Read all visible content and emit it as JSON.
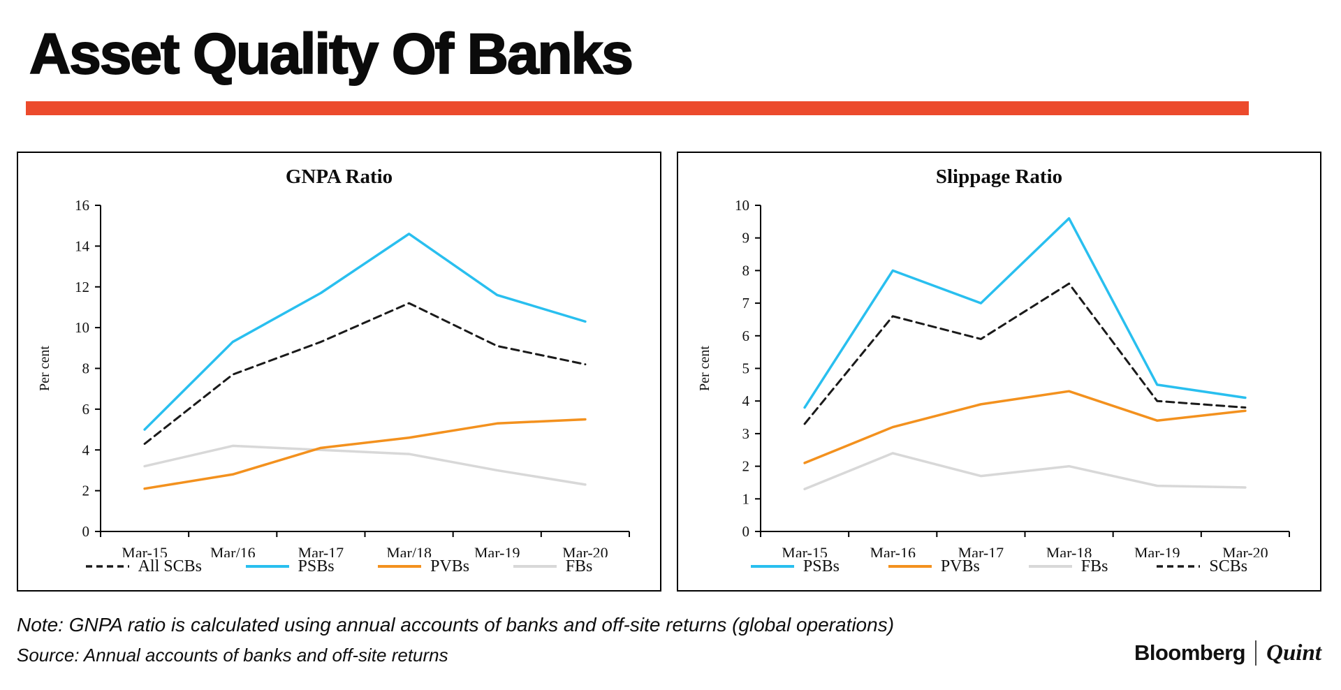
{
  "page": {
    "title": "Asset Quality Of Banks",
    "note": "Note: GNPA ratio is calculated using annual accounts of banks and off-site returns (global operations)",
    "source": "Source: Annual accounts of banks and off-site returns",
    "brand": {
      "bloomberg": "Bloomberg",
      "quint": "Quint"
    },
    "accent_color": "#ec4a2c"
  },
  "chart_data": [
    {
      "type": "line",
      "title": "GNPA Ratio",
      "ylabel": "Per cent",
      "ylim": [
        0,
        16
      ],
      "ytick_step": 2,
      "grid": false,
      "legend_position": "bottom",
      "categories": [
        "Mar-15",
        "Mar/16",
        "Mar-17",
        "Mar/18",
        "Mar-19",
        "Mar-20"
      ],
      "series": [
        {
          "name": "All SCBs",
          "color": "#1a1a1a",
          "dashed": true,
          "z": 2,
          "values": [
            4.3,
            7.7,
            9.3,
            11.2,
            9.1,
            8.2
          ]
        },
        {
          "name": "PSBs",
          "color": "#29bfef",
          "dashed": false,
          "z": 3,
          "values": [
            5.0,
            9.3,
            11.7,
            14.6,
            11.6,
            10.3
          ]
        },
        {
          "name": "PVBs",
          "color": "#f3911e",
          "dashed": false,
          "z": 1,
          "values": [
            2.1,
            2.8,
            4.1,
            4.6,
            5.3,
            5.5
          ]
        },
        {
          "name": "FBs",
          "color": "#d8d8d8",
          "dashed": false,
          "z": 0,
          "values": [
            3.2,
            4.2,
            4.0,
            3.8,
            3.0,
            2.3
          ]
        }
      ]
    },
    {
      "type": "line",
      "title": "Slippage Ratio",
      "ylabel": "Per cent",
      "ylim": [
        0,
        10
      ],
      "ytick_step": 1,
      "grid": false,
      "legend_position": "bottom",
      "categories": [
        "Mar-15",
        "Mar-16",
        "Mar-17",
        "Mar-18",
        "Mar-19",
        "Mar-20"
      ],
      "series": [
        {
          "name": "PSBs",
          "color": "#29bfef",
          "dashed": false,
          "z": 3,
          "values": [
            3.8,
            8.0,
            7.0,
            9.6,
            4.5,
            4.1
          ]
        },
        {
          "name": "PVBs",
          "color": "#f3911e",
          "dashed": false,
          "z": 1,
          "values": [
            2.1,
            3.2,
            3.9,
            4.3,
            3.4,
            3.7
          ]
        },
        {
          "name": "FBs",
          "color": "#d8d8d8",
          "dashed": false,
          "z": 0,
          "values": [
            1.3,
            2.4,
            1.7,
            2.0,
            1.4,
            1.35
          ]
        },
        {
          "name": "SCBs",
          "color": "#1a1a1a",
          "dashed": true,
          "z": 2,
          "values": [
            3.3,
            6.6,
            5.9,
            7.6,
            4.0,
            3.8
          ]
        }
      ]
    }
  ]
}
